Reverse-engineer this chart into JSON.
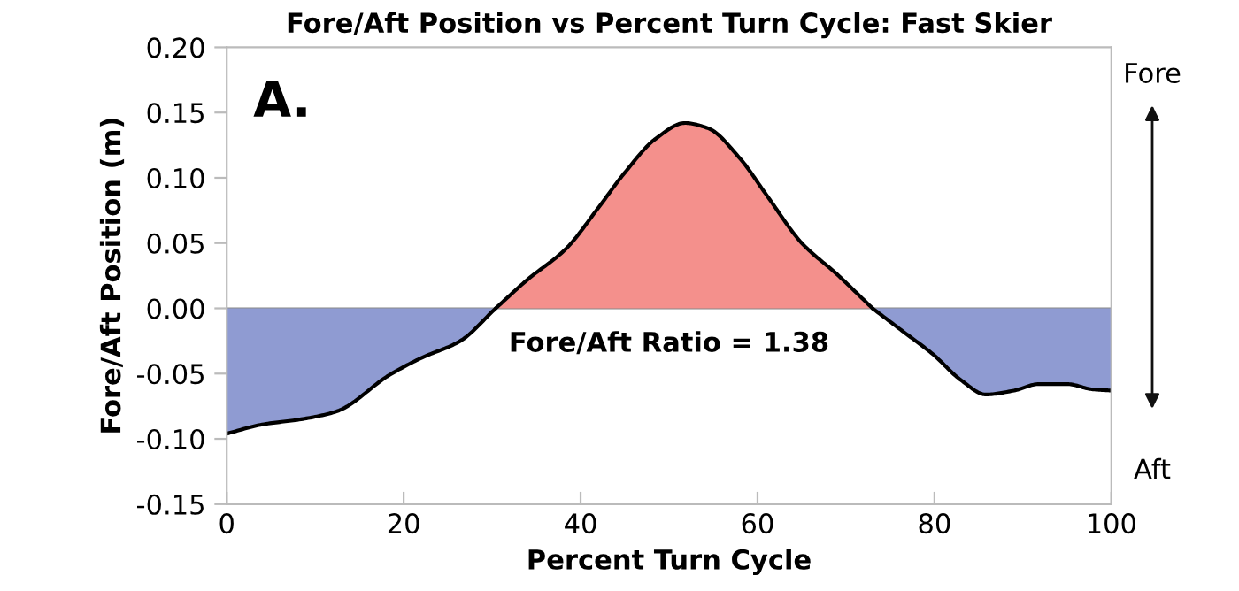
{
  "chart_data": {
    "type": "area",
    "title": "Fore/Aft Position vs Percent Turn Cycle: Fast Skier",
    "xlabel": "Percent Turn Cycle",
    "ylabel": "Fore/Aft Position (m)",
    "x": [
      0,
      4,
      8.4,
      12.4,
      18.4,
      22,
      26.4,
      30.4,
      34,
      38.4,
      42,
      45,
      48.5,
      51.8,
      54.4,
      58,
      61,
      65,
      69,
      73,
      76.5,
      79.8,
      83,
      85.8,
      89,
      91.8,
      95,
      97.8,
      100
    ],
    "series": [
      {
        "color": "#8f9bd2",
        "values": [
          -0.096,
          -0.089,
          -0.085,
          -0.079,
          -0.051,
          -0.038,
          -0.025,
          0.0,
          null,
          null,
          null,
          null,
          null,
          null,
          null,
          null,
          null,
          null,
          null,
          0.0,
          -0.018,
          -0.035,
          -0.055,
          -0.066,
          -0.063,
          -0.058,
          -0.058,
          -0.062,
          -0.063
        ]
      },
      {
        "color": "#f4908c",
        "values": [
          null,
          null,
          null,
          null,
          null,
          null,
          null,
          0.0,
          0.022,
          0.046,
          0.077,
          0.104,
          0.13,
          0.142,
          0.138,
          0.115,
          0.087,
          0.05,
          0.026,
          0.0,
          null,
          null,
          null,
          null,
          null,
          null,
          null,
          null,
          null
        ]
      }
    ],
    "xlim": [
      0,
      100
    ],
    "xticks": [
      0,
      20,
      40,
      60,
      80,
      100
    ],
    "ylim": [
      -0.15,
      0.2
    ],
    "yticks": [
      {
        "value": -0.15,
        "label": "-0.15"
      },
      {
        "value": -0.1,
        "label": "-0.10"
      },
      {
        "value": -0.05,
        "label": "-0.05"
      },
      {
        "value": 0,
        "label": "0.00"
      },
      {
        "value": 0.05,
        "label": "0.05"
      },
      {
        "value": 0.1,
        "label": "0.10"
      },
      {
        "value": 0.15,
        "label": "0.15"
      },
      {
        "value": 0.2,
        "label": "0.20"
      }
    ],
    "grid": false,
    "legend": false,
    "ref_lines": [
      {
        "axis": "y",
        "value": 0,
        "color": "#888888"
      }
    ],
    "annotations": [
      "A.",
      "Fore/Aft Ratio = 1.38",
      "Fore",
      "Aft"
    ]
  }
}
